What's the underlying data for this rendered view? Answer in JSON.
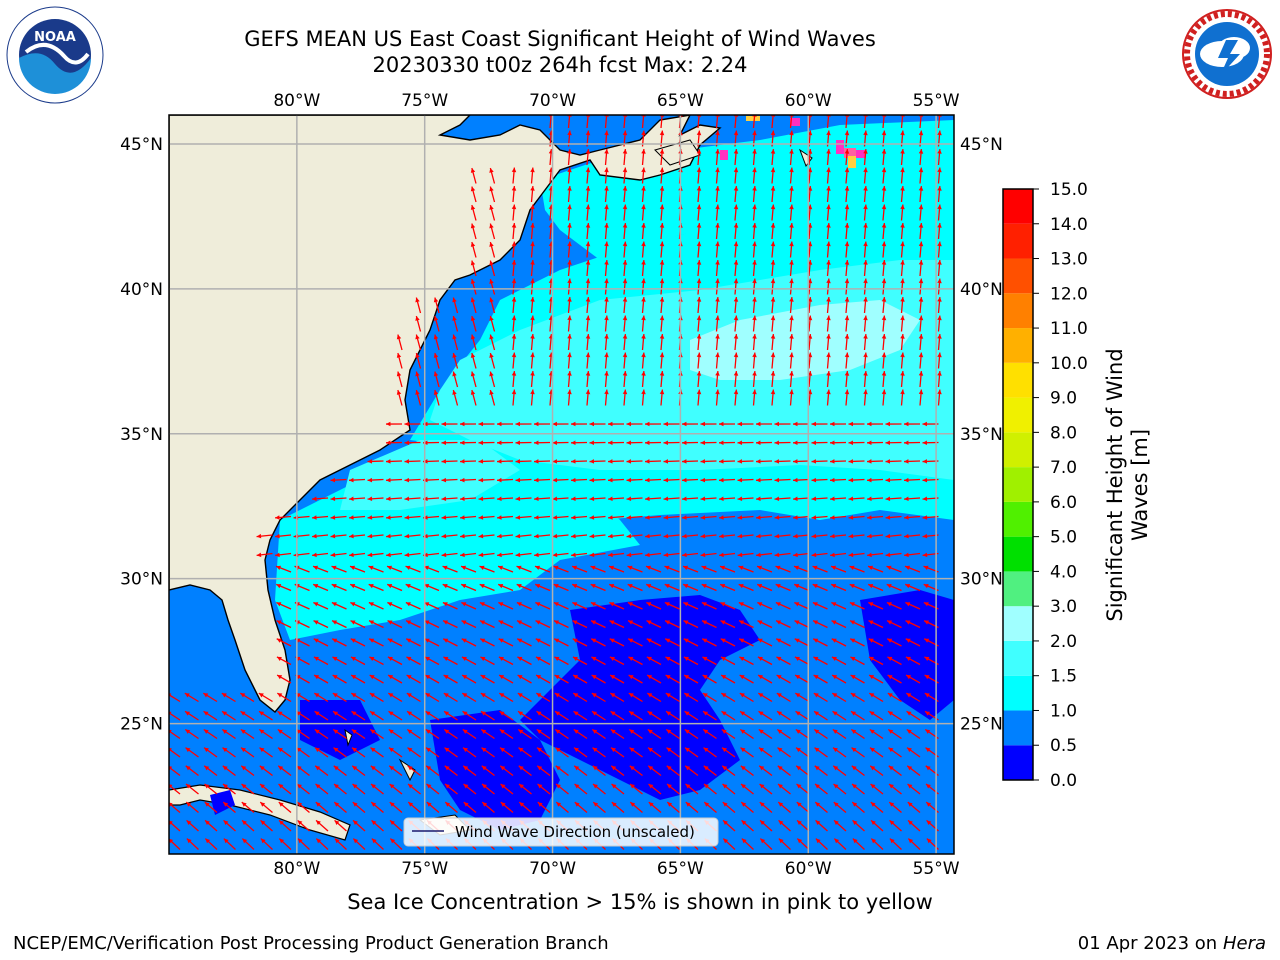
{
  "title": {
    "line1": "GEFS MEAN US East Coast Significant Height of Wind Waves",
    "line2": "20230330 t00z 264h fcst   Max: 2.24"
  },
  "map": {
    "lon_range": [
      -85,
      -54.3
    ],
    "lat_range": [
      20.5,
      46
    ],
    "lon_ticks": [
      -80,
      -75,
      -70,
      -65,
      -60,
      -55
    ],
    "lon_tick_labels": [
      "80°W",
      "75°W",
      "70°W",
      "65°W",
      "60°W",
      "55°W"
    ],
    "lat_ticks": [
      25,
      30,
      35,
      40,
      45
    ],
    "lat_tick_labels": [
      "25°N",
      "30°N",
      "35°N",
      "40°N",
      "45°N"
    ],
    "gridlines": true,
    "legend": {
      "label": "Wind Wave Direction (unscaled)",
      "placement": "bottom-center"
    }
  },
  "colorbar": {
    "label": "Significant Height of Wind Waves [m]",
    "levels": [
      0.0,
      0.5,
      1.0,
      1.5,
      2.0,
      3.0,
      4.0,
      5.0,
      6.0,
      7.0,
      8.0,
      9.0,
      10.0,
      11.0,
      12.0,
      13.0,
      14.0,
      15.0
    ],
    "tick_labels": [
      "0.0",
      "0.5",
      "1.0",
      "1.5",
      "2.0",
      "3.0",
      "4.0",
      "5.0",
      "6.0",
      "7.0",
      "8.0",
      "9.0",
      "10.0",
      "11.0",
      "12.0",
      "13.0",
      "14.0",
      "15.0"
    ],
    "colors": [
      "#0000ff",
      "#0080ff",
      "#00ffff",
      "#40ffff",
      "#a0ffff",
      "#50f080",
      "#00e000",
      "#50f000",
      "#a0f000",
      "#d0f000",
      "#f0f000",
      "#ffe000",
      "#ffb000",
      "#ff8000",
      "#ff5000",
      "#ff2000",
      "#ff0000"
    ]
  },
  "colors": {
    "land": "#efedda",
    "arrow": "#ff0000",
    "grid": "#b0b0b0",
    "ice": "#ff30c0"
  },
  "footer": {
    "note": "Sea Ice Concentration > 15% is shown in pink to yellow",
    "branch": "NCEP/EMC/Verification Post Processing Product Generation Branch",
    "date": "01 Apr 2023 on",
    "machine": "Hera"
  },
  "logos": {
    "left": "noaa-logo-icon",
    "right": "nws-logo-icon",
    "left_text": "NOAA"
  }
}
